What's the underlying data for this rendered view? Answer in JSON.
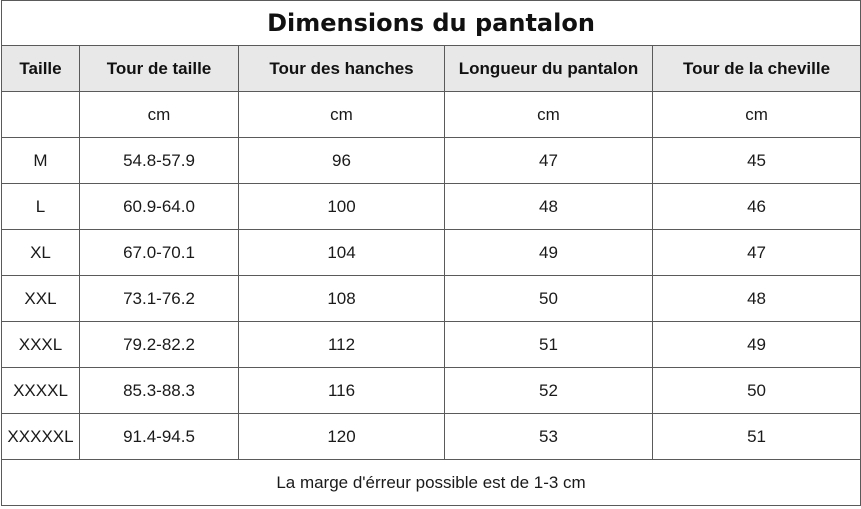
{
  "title": "Dimensions du pantalon",
  "headers": [
    "Taille",
    "Tour de taille",
    "Tour des hanches",
    "Longueur du pantalon",
    "Tour de la cheville"
  ],
  "units": [
    "",
    "cm",
    "cm",
    "cm",
    "cm"
  ],
  "rows": [
    [
      "M",
      "54.8-57.9",
      "96",
      "47",
      "45"
    ],
    [
      "L",
      "60.9-64.0",
      "100",
      "48",
      "46"
    ],
    [
      "XL",
      "67.0-70.1",
      "104",
      "49",
      "47"
    ],
    [
      "XXL",
      "73.1-76.2",
      "108",
      "50",
      "48"
    ],
    [
      "XXXL",
      "79.2-82.2",
      "112",
      "51",
      "49"
    ],
    [
      "XXXXL",
      "85.3-88.3",
      "116",
      "52",
      "50"
    ],
    [
      "XXXXXL",
      "91.4-94.5",
      "120",
      "53",
      "51"
    ]
  ],
  "footer": "La marge d'érreur possible est de 1-3 cm",
  "colors": {
    "header_background": "#e8e8e8",
    "border": "#5a5a5a",
    "text": "#1a1a1a"
  }
}
